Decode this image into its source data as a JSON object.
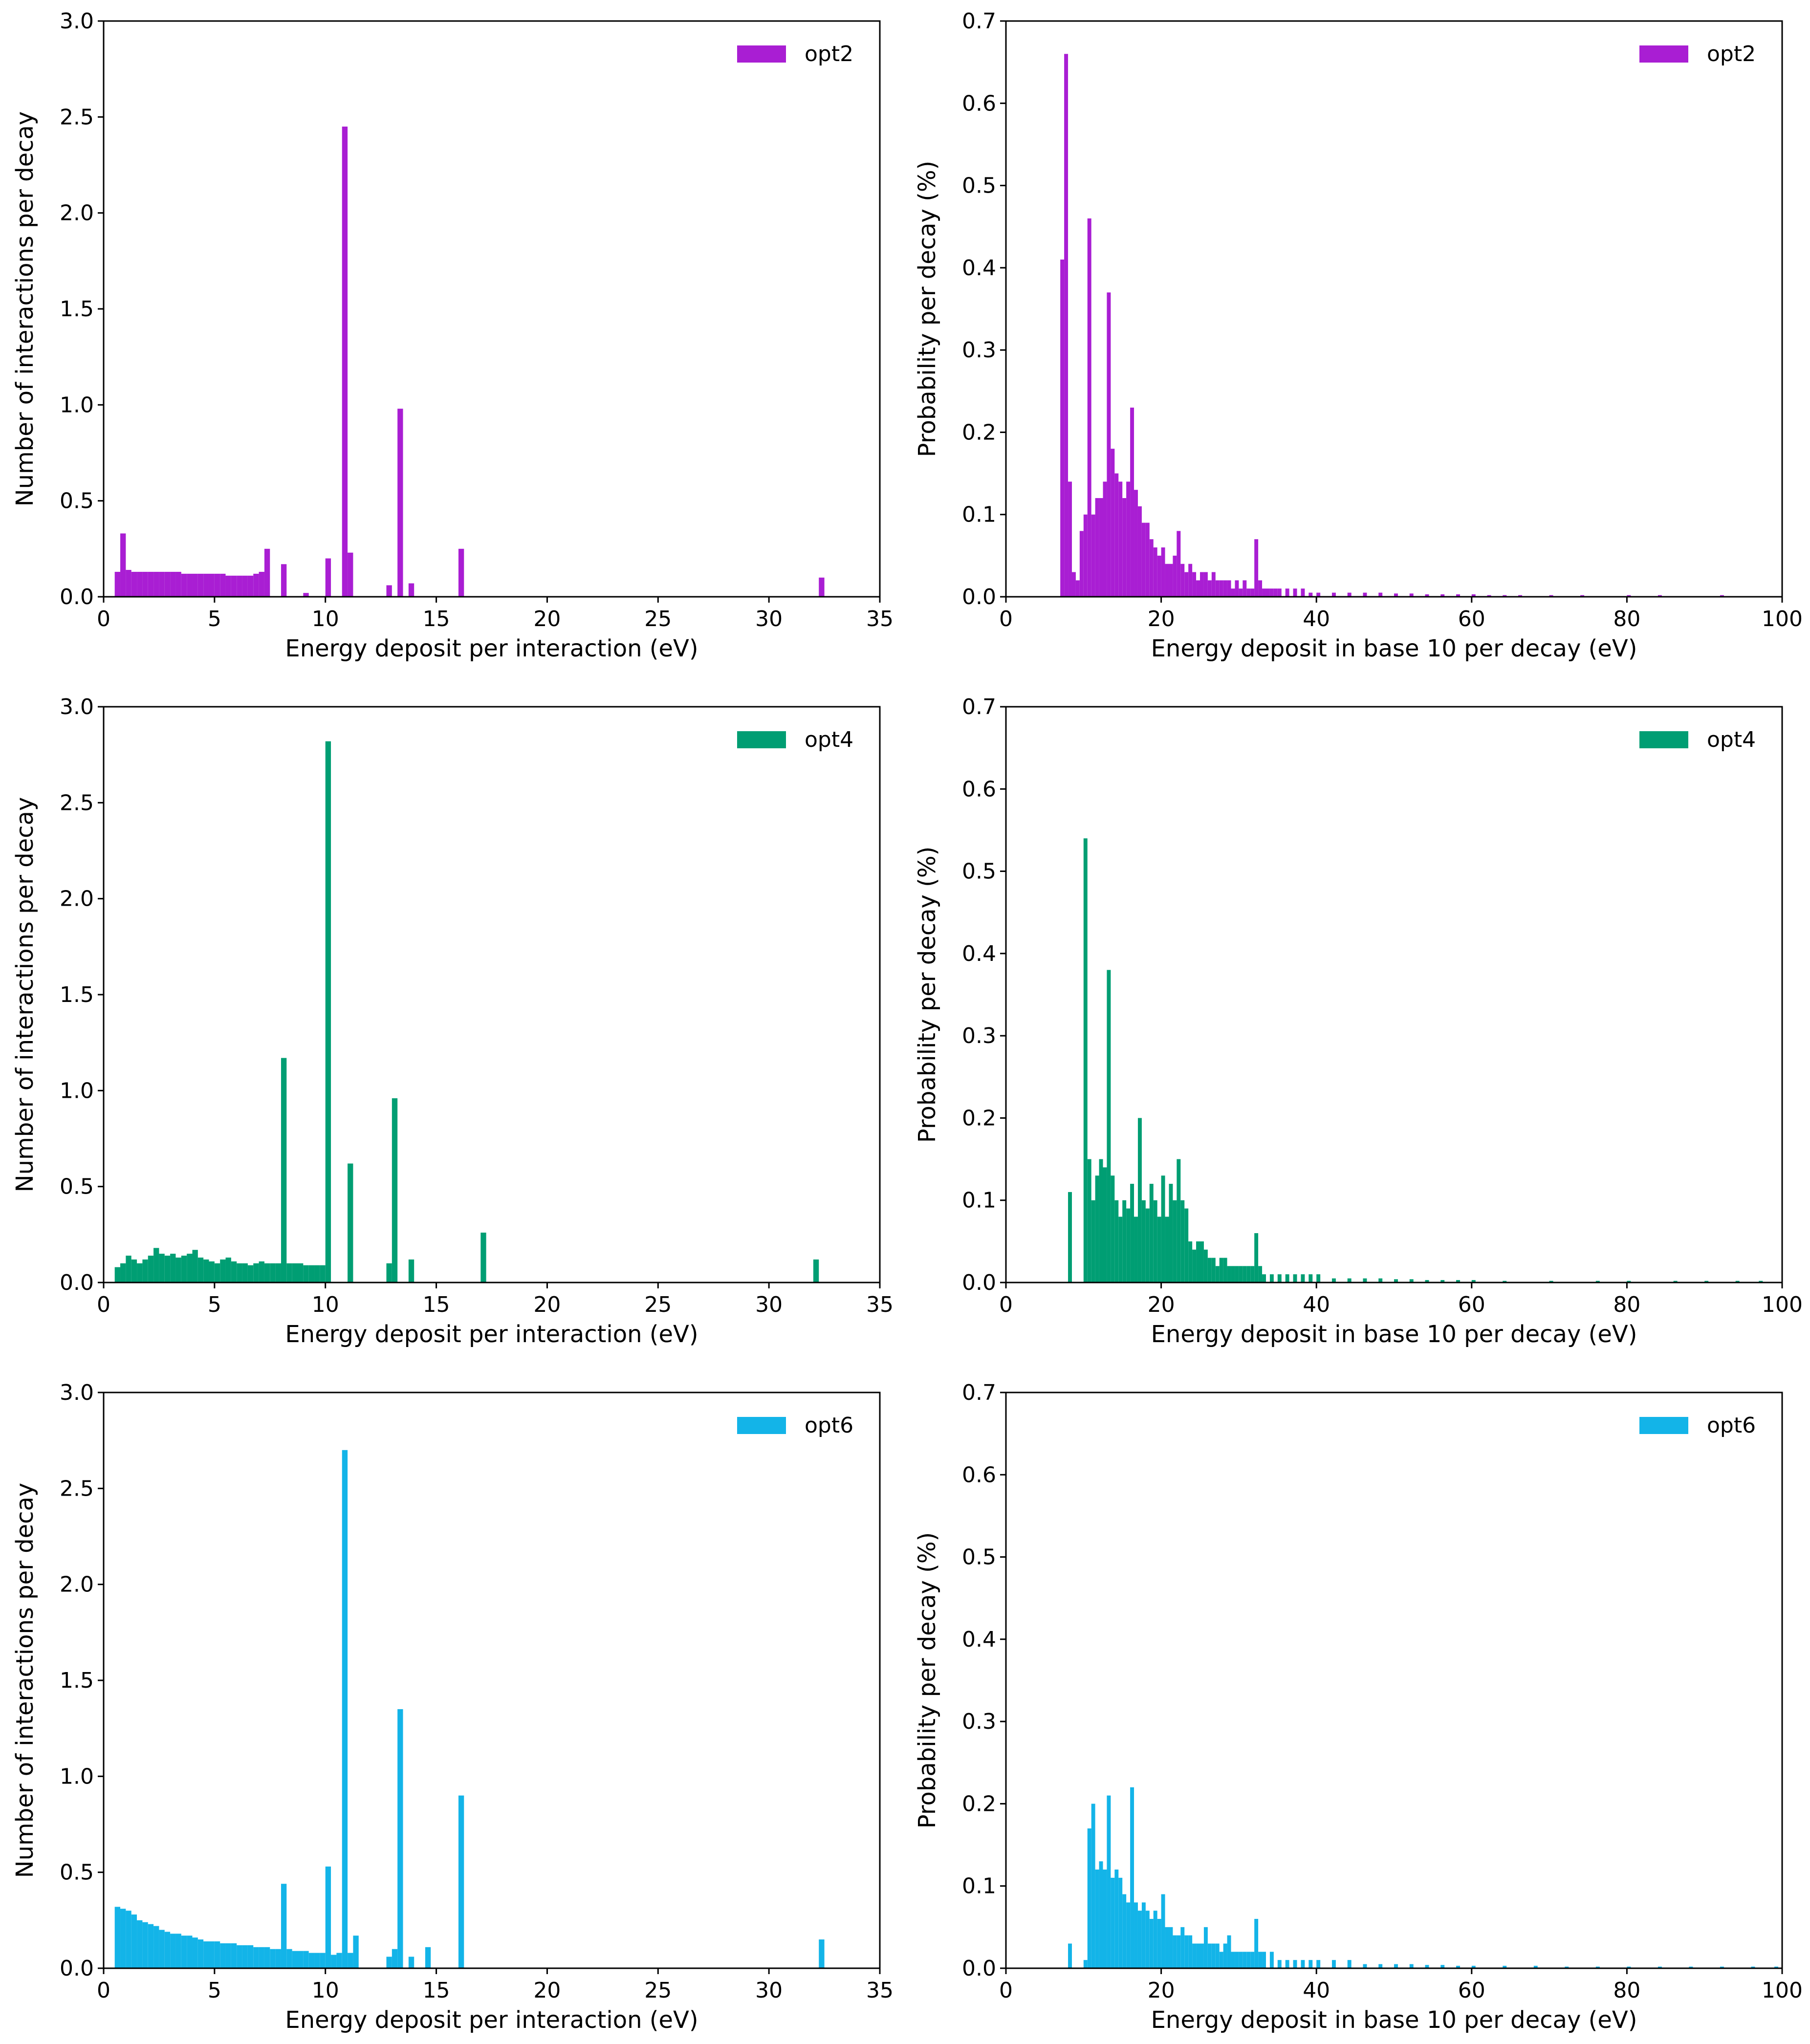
{
  "chart_data": [
    {
      "type": "bar",
      "panel": "top-left",
      "title": "",
      "xlabel": "Energy deposit per interaction (eV)",
      "ylabel": "Number of interactions per decay",
      "xlim": [
        0,
        35
      ],
      "ylim": [
        0,
        3.0
      ],
      "xticks": [
        0,
        5,
        10,
        15,
        20,
        25,
        30,
        35
      ],
      "yticks": [
        0.0,
        0.5,
        1.0,
        1.5,
        2.0,
        2.5,
        3.0
      ],
      "ytick_labels": [
        "0.0",
        "0.5",
        "1.0",
        "1.5",
        "2.0",
        "2.5",
        "3.0"
      ],
      "legend": [
        "opt2"
      ],
      "legend_position": "top-right",
      "color": "#a91ed3",
      "bin_width": 0.25,
      "series": [
        {
          "name": "opt2",
          "x": [
            0.5,
            0.75,
            1.0,
            1.25,
            1.5,
            1.75,
            2.0,
            2.25,
            2.5,
            2.75,
            3.0,
            3.25,
            3.5,
            3.75,
            4.0,
            4.25,
            4.5,
            4.75,
            5.0,
            5.25,
            5.5,
            5.75,
            6.0,
            6.25,
            6.5,
            6.75,
            7.0,
            7.25,
            8.0,
            9.0,
            10.0,
            10.75,
            11.0,
            12.75,
            13.25,
            13.75,
            16.0,
            32.25
          ],
          "y": [
            0.13,
            0.33,
            0.14,
            0.13,
            0.13,
            0.13,
            0.13,
            0.13,
            0.13,
            0.13,
            0.13,
            0.13,
            0.12,
            0.12,
            0.12,
            0.12,
            0.12,
            0.12,
            0.12,
            0.12,
            0.11,
            0.11,
            0.11,
            0.11,
            0.11,
            0.12,
            0.13,
            0.25,
            0.17,
            0.02,
            0.2,
            2.45,
            0.23,
            0.06,
            0.98,
            0.07,
            0.25,
            0.1
          ]
        }
      ]
    },
    {
      "type": "bar",
      "panel": "top-right",
      "title": "",
      "xlabel": "Energy deposit in base 10 per decay (eV)",
      "ylabel": "Probability per decay (%)",
      "xlim": [
        0,
        100
      ],
      "ylim": [
        0,
        0.7
      ],
      "xticks": [
        0,
        20,
        40,
        60,
        80,
        100
      ],
      "yticks": [
        0.0,
        0.1,
        0.2,
        0.3,
        0.4,
        0.5,
        0.6,
        0.7
      ],
      "ytick_labels": [
        "0.0",
        "0.1",
        "0.2",
        "0.3",
        "0.4",
        "0.5",
        "0.6",
        "0.7"
      ],
      "legend": [
        "opt2"
      ],
      "legend_position": "top-right",
      "color": "#a91ed3",
      "bin_width": 0.5,
      "series": [
        {
          "name": "opt2",
          "x": [
            7.0,
            7.5,
            8.0,
            8.5,
            9.0,
            9.5,
            10.0,
            10.5,
            11.0,
            11.5,
            12.0,
            12.5,
            13.0,
            13.5,
            14.0,
            14.5,
            15.0,
            15.5,
            16.0,
            16.5,
            17.0,
            17.5,
            18.0,
            18.5,
            19.0,
            19.5,
            20.0,
            20.5,
            21.0,
            21.5,
            22.0,
            22.5,
            23.0,
            23.5,
            24.0,
            24.5,
            25.0,
            25.5,
            26.0,
            26.5,
            27.0,
            27.5,
            28.0,
            28.5,
            29.0,
            29.5,
            30.0,
            30.5,
            31.0,
            31.5,
            32.0,
            32.5,
            33.0,
            33.5,
            34.0,
            34.5,
            35.0,
            36.0,
            37.0,
            38.0,
            39.0,
            40.0,
            42.0,
            44.0,
            46.0,
            48.0,
            50.0,
            52.0,
            54.0,
            56.0,
            58.0,
            60.0,
            62.0,
            64.0,
            66.0,
            70.0,
            74.0,
            80.0,
            84.0,
            92.0
          ],
          "y": [
            0.41,
            0.66,
            0.14,
            0.03,
            0.02,
            0.08,
            0.1,
            0.46,
            0.1,
            0.12,
            0.12,
            0.14,
            0.37,
            0.18,
            0.15,
            0.14,
            0.12,
            0.14,
            0.23,
            0.13,
            0.11,
            0.09,
            0.09,
            0.07,
            0.06,
            0.05,
            0.06,
            0.04,
            0.04,
            0.05,
            0.08,
            0.04,
            0.03,
            0.04,
            0.03,
            0.02,
            0.03,
            0.03,
            0.02,
            0.03,
            0.02,
            0.02,
            0.02,
            0.02,
            0.01,
            0.02,
            0.01,
            0.02,
            0.01,
            0.01,
            0.07,
            0.02,
            0.01,
            0.01,
            0.01,
            0.01,
            0.01,
            0.01,
            0.01,
            0.01,
            0.005,
            0.005,
            0.005,
            0.005,
            0.005,
            0.005,
            0.004,
            0.004,
            0.003,
            0.003,
            0.003,
            0.003,
            0.002,
            0.002,
            0.002,
            0.002,
            0.002,
            0.002,
            0.002,
            0.002
          ]
        }
      ]
    },
    {
      "type": "bar",
      "panel": "middle-left",
      "title": "",
      "xlabel": "Energy deposit per interaction (eV)",
      "ylabel": "Number of interactions per decay",
      "xlim": [
        0,
        35
      ],
      "ylim": [
        0,
        3.0
      ],
      "xticks": [
        0,
        5,
        10,
        15,
        20,
        25,
        30,
        35
      ],
      "yticks": [
        0.0,
        0.5,
        1.0,
        1.5,
        2.0,
        2.5,
        3.0
      ],
      "ytick_labels": [
        "0.0",
        "0.5",
        "1.0",
        "1.5",
        "2.0",
        "2.5",
        "3.0"
      ],
      "legend": [
        "opt4"
      ],
      "legend_position": "top-right",
      "color": "#009e73",
      "bin_width": 0.25,
      "series": [
        {
          "name": "opt4",
          "x": [
            0.5,
            0.75,
            1.0,
            1.25,
            1.5,
            1.75,
            2.0,
            2.25,
            2.5,
            2.75,
            3.0,
            3.25,
            3.5,
            3.75,
            4.0,
            4.25,
            4.5,
            4.75,
            5.0,
            5.25,
            5.5,
            5.75,
            6.0,
            6.25,
            6.5,
            6.75,
            7.0,
            7.25,
            7.5,
            7.75,
            8.0,
            8.25,
            8.5,
            8.75,
            9.0,
            9.25,
            9.5,
            9.75,
            10.0,
            11.0,
            12.75,
            13.0,
            13.75,
            17.0,
            32.0
          ],
          "y": [
            0.08,
            0.1,
            0.14,
            0.12,
            0.1,
            0.12,
            0.14,
            0.18,
            0.15,
            0.14,
            0.15,
            0.13,
            0.14,
            0.15,
            0.17,
            0.13,
            0.12,
            0.11,
            0.1,
            0.12,
            0.13,
            0.11,
            0.1,
            0.1,
            0.09,
            0.1,
            0.11,
            0.1,
            0.1,
            0.1,
            1.17,
            0.1,
            0.1,
            0.1,
            0.09,
            0.09,
            0.09,
            0.09,
            2.82,
            0.62,
            0.1,
            0.96,
            0.12,
            0.26,
            0.12
          ]
        }
      ]
    },
    {
      "type": "bar",
      "panel": "middle-right",
      "title": "",
      "xlabel": "Energy deposit in base 10 per decay (eV)",
      "ylabel": "Probability per decay (%)",
      "xlim": [
        0,
        100
      ],
      "ylim": [
        0,
        0.7
      ],
      "xticks": [
        0,
        20,
        40,
        60,
        80,
        100
      ],
      "yticks": [
        0.0,
        0.1,
        0.2,
        0.3,
        0.4,
        0.5,
        0.6,
        0.7
      ],
      "ytick_labels": [
        "0.0",
        "0.1",
        "0.2",
        "0.3",
        "0.4",
        "0.5",
        "0.6",
        "0.7"
      ],
      "legend": [
        "opt4"
      ],
      "legend_position": "top-right",
      "color": "#009e73",
      "bin_width": 0.5,
      "series": [
        {
          "name": "opt4",
          "x": [
            8.0,
            10.0,
            10.5,
            11.0,
            11.5,
            12.0,
            12.5,
            13.0,
            13.5,
            14.0,
            14.5,
            15.0,
            15.5,
            16.0,
            16.5,
            17.0,
            17.5,
            18.0,
            18.5,
            19.0,
            19.5,
            20.0,
            20.5,
            21.0,
            21.5,
            22.0,
            22.5,
            23.0,
            23.5,
            24.0,
            24.5,
            25.0,
            25.5,
            26.0,
            26.5,
            27.0,
            27.5,
            28.0,
            28.5,
            29.0,
            29.5,
            30.0,
            30.5,
            31.0,
            31.5,
            32.0,
            32.5,
            33.0,
            34.0,
            35.0,
            36.0,
            37.0,
            38.0,
            39.0,
            40.0,
            42.0,
            44.0,
            46.0,
            48.0,
            50.0,
            52.0,
            54.0,
            56.0,
            58.0,
            60.0,
            64.0,
            70.0,
            76.0,
            80.0,
            86.0,
            90.0,
            94.0,
            97.0
          ],
          "y": [
            0.11,
            0.54,
            0.15,
            0.1,
            0.13,
            0.15,
            0.14,
            0.38,
            0.13,
            0.1,
            0.08,
            0.1,
            0.09,
            0.12,
            0.08,
            0.2,
            0.1,
            0.09,
            0.12,
            0.1,
            0.08,
            0.13,
            0.08,
            0.12,
            0.1,
            0.15,
            0.1,
            0.09,
            0.05,
            0.04,
            0.05,
            0.05,
            0.04,
            0.03,
            0.03,
            0.02,
            0.03,
            0.03,
            0.02,
            0.02,
            0.02,
            0.02,
            0.02,
            0.02,
            0.02,
            0.06,
            0.02,
            0.01,
            0.01,
            0.01,
            0.01,
            0.01,
            0.01,
            0.01,
            0.01,
            0.005,
            0.005,
            0.005,
            0.005,
            0.004,
            0.004,
            0.003,
            0.003,
            0.003,
            0.003,
            0.002,
            0.002,
            0.002,
            0.002,
            0.002,
            0.002,
            0.002,
            0.002
          ]
        }
      ]
    },
    {
      "type": "bar",
      "panel": "bottom-left",
      "title": "",
      "xlabel": "Energy deposit per interaction (eV)",
      "ylabel": "Number of interactions per decay",
      "xlim": [
        0,
        35
      ],
      "ylim": [
        0,
        3.0
      ],
      "xticks": [
        0,
        5,
        10,
        15,
        20,
        25,
        30,
        35
      ],
      "yticks": [
        0.0,
        0.5,
        1.0,
        1.5,
        2.0,
        2.5,
        3.0
      ],
      "ytick_labels": [
        "0.0",
        "0.5",
        "1.0",
        "1.5",
        "2.0",
        "2.5",
        "3.0"
      ],
      "legend": [
        "opt6"
      ],
      "legend_position": "top-right",
      "color": "#13b4e8",
      "bin_width": 0.25,
      "series": [
        {
          "name": "opt6",
          "x": [
            0.5,
            0.75,
            1.0,
            1.25,
            1.5,
            1.75,
            2.0,
            2.25,
            2.5,
            2.75,
            3.0,
            3.25,
            3.5,
            3.75,
            4.0,
            4.25,
            4.5,
            4.75,
            5.0,
            5.25,
            5.5,
            5.75,
            6.0,
            6.25,
            6.5,
            6.75,
            7.0,
            7.25,
            7.5,
            7.75,
            8.0,
            8.25,
            8.5,
            8.75,
            9.0,
            9.25,
            9.5,
            9.75,
            10.0,
            10.25,
            10.5,
            10.75,
            11.0,
            11.25,
            12.75,
            13.0,
            13.25,
            13.75,
            14.5,
            16.0,
            32.25
          ],
          "y": [
            0.32,
            0.31,
            0.3,
            0.28,
            0.25,
            0.24,
            0.23,
            0.22,
            0.2,
            0.19,
            0.18,
            0.18,
            0.17,
            0.17,
            0.16,
            0.15,
            0.14,
            0.14,
            0.14,
            0.13,
            0.13,
            0.13,
            0.12,
            0.12,
            0.12,
            0.11,
            0.11,
            0.11,
            0.1,
            0.1,
            0.44,
            0.1,
            0.09,
            0.09,
            0.09,
            0.08,
            0.08,
            0.08,
            0.53,
            0.07,
            0.08,
            2.7,
            0.08,
            0.17,
            0.06,
            0.1,
            1.35,
            0.06,
            0.11,
            0.9,
            0.15
          ]
        }
      ]
    },
    {
      "type": "bar",
      "panel": "bottom-right",
      "title": "",
      "xlabel": "Energy deposit in base 10 per decay (eV)",
      "ylabel": "Probability per decay (%)",
      "xlim": [
        0,
        100
      ],
      "ylim": [
        0,
        0.7
      ],
      "xticks": [
        0,
        20,
        40,
        60,
        80,
        100
      ],
      "yticks": [
        0.0,
        0.1,
        0.2,
        0.3,
        0.4,
        0.5,
        0.6,
        0.7
      ],
      "ytick_labels": [
        "0.0",
        "0.1",
        "0.2",
        "0.3",
        "0.4",
        "0.5",
        "0.6",
        "0.7"
      ],
      "legend": [
        "opt6"
      ],
      "legend_position": "top-right",
      "color": "#13b4e8",
      "bin_width": 0.5,
      "series": [
        {
          "name": "opt6",
          "x": [
            8.0,
            10.0,
            10.5,
            11.0,
            11.5,
            12.0,
            12.5,
            13.0,
            13.5,
            14.0,
            14.5,
            15.0,
            15.5,
            16.0,
            16.5,
            17.0,
            17.5,
            18.0,
            18.5,
            19.0,
            19.5,
            20.0,
            20.5,
            21.0,
            21.5,
            22.0,
            22.5,
            23.0,
            23.5,
            24.0,
            24.5,
            25.0,
            25.5,
            26.0,
            26.5,
            27.0,
            27.5,
            28.0,
            28.5,
            29.0,
            29.5,
            30.0,
            30.5,
            31.0,
            31.5,
            32.0,
            32.5,
            33.0,
            34.0,
            35.0,
            36.0,
            37.0,
            38.0,
            39.0,
            40.0,
            42.0,
            44.0,
            46.0,
            48.0,
            50.0,
            52.0,
            54.0,
            56.0,
            58.0,
            60.0,
            64.0,
            68.0,
            72.0,
            76.0,
            80.0,
            84.0,
            88.0,
            92.0,
            96.0,
            99.0
          ],
          "y": [
            0.03,
            0.01,
            0.17,
            0.2,
            0.12,
            0.13,
            0.12,
            0.21,
            0.11,
            0.12,
            0.11,
            0.09,
            0.08,
            0.22,
            0.08,
            0.07,
            0.08,
            0.07,
            0.06,
            0.07,
            0.06,
            0.09,
            0.05,
            0.05,
            0.04,
            0.04,
            0.05,
            0.04,
            0.04,
            0.03,
            0.03,
            0.03,
            0.05,
            0.03,
            0.03,
            0.03,
            0.02,
            0.03,
            0.04,
            0.02,
            0.02,
            0.02,
            0.02,
            0.02,
            0.02,
            0.06,
            0.02,
            0.02,
            0.02,
            0.01,
            0.01,
            0.01,
            0.01,
            0.01,
            0.01,
            0.01,
            0.01,
            0.005,
            0.005,
            0.005,
            0.005,
            0.004,
            0.004,
            0.003,
            0.003,
            0.003,
            0.003,
            0.002,
            0.002,
            0.002,
            0.002,
            0.002,
            0.002,
            0.002,
            0.002
          ]
        }
      ]
    }
  ]
}
